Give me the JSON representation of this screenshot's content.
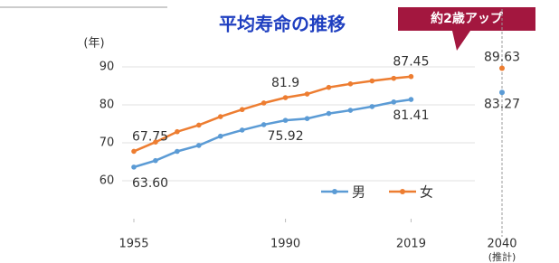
{
  "chart_data": {
    "type": "line",
    "title": "平均寿命の推移",
    "callout": "約2歳アップ",
    "y_unit": "(年)",
    "x": [
      1955,
      1960,
      1965,
      1970,
      1975,
      1980,
      1985,
      1990,
      1995,
      2000,
      2005,
      2010,
      2015,
      2019
    ],
    "xticks": [
      1955,
      1990,
      2019
    ],
    "series": [
      {
        "name": "男",
        "color": "#5b9bd5",
        "values": [
          63.6,
          65.32,
          67.74,
          69.31,
          71.73,
          73.35,
          74.78,
          75.92,
          76.38,
          77.72,
          78.56,
          79.55,
          80.75,
          81.41
        ],
        "value_labels": [
          "63.60",
          null,
          null,
          null,
          null,
          null,
          null,
          "75.92",
          null,
          null,
          null,
          null,
          null,
          "81.41"
        ]
      },
      {
        "name": "女",
        "color": "#ed7d31",
        "values": [
          67.75,
          70.19,
          72.92,
          74.66,
          76.89,
          78.76,
          80.48,
          81.9,
          82.85,
          84.6,
          85.52,
          86.3,
          86.99,
          87.45
        ],
        "value_labels": [
          "67.75",
          null,
          null,
          null,
          null,
          null,
          null,
          "81.9",
          null,
          null,
          null,
          null,
          null,
          "87.45"
        ]
      }
    ],
    "projection": {
      "x": 2040,
      "label": "(推計)",
      "values": [
        83.27,
        89.63
      ]
    },
    "xlim": [
      1955,
      2040
    ],
    "ylim": [
      50,
      95
    ],
    "yticks": [
      60,
      70,
      80,
      90
    ],
    "grid": true
  }
}
